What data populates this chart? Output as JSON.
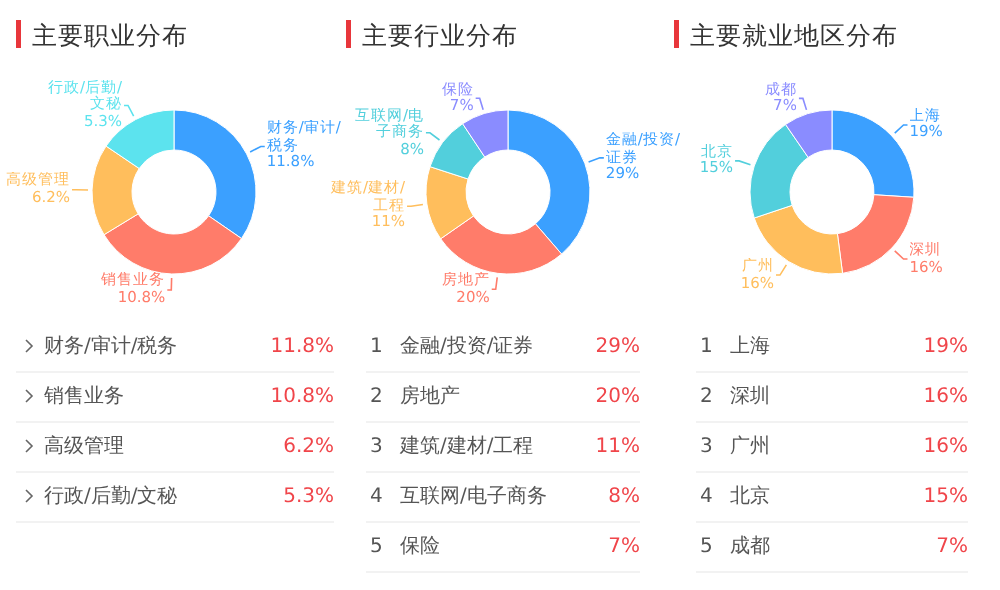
{
  "chart_data": [
    {
      "type": "donut",
      "title": "主要职业分布",
      "categories": [
        "财务/审计/税务",
        "销售业务",
        "高级管理",
        "行政/后勤/文秘"
      ],
      "values": [
        11.8,
        10.8,
        6.2,
        5.3
      ],
      "value_labels": [
        "11.8%",
        "10.8%",
        "6.2%",
        "5.3%"
      ],
      "colors": [
        "#3ba0ff",
        "#ff7c6a",
        "#ffbe5c",
        "#5ce3ee"
      ]
    },
    {
      "type": "donut",
      "title": "主要行业分布",
      "categories": [
        "金融/投资/证券",
        "房地产",
        "建筑/建材/工程",
        "互联网/电子商务",
        "保险"
      ],
      "values": [
        29,
        20,
        11,
        8,
        7
      ],
      "value_labels": [
        "29%",
        "20%",
        "11%",
        "8%",
        "7%"
      ],
      "annotations": [
        "1",
        "2",
        "3",
        "4",
        "5"
      ],
      "colors": [
        "#3ba0ff",
        "#ff7c6a",
        "#ffbe5c",
        "#52cfdc",
        "#8a8cff"
      ]
    },
    {
      "type": "donut",
      "title": "主要就业地区分布",
      "categories": [
        "上海",
        "深圳",
        "广州",
        "北京",
        "成都"
      ],
      "values": [
        19,
        16,
        16,
        15,
        7
      ],
      "value_labels": [
        "19%",
        "16%",
        "16%",
        "15%",
        "7%"
      ],
      "annotations": [
        "1",
        "2",
        "3",
        "4",
        "5"
      ],
      "colors": [
        "#3ba0ff",
        "#ff7c6a",
        "#ffbe5c",
        "#52cfdc",
        "#8a8cff"
      ]
    }
  ]
}
